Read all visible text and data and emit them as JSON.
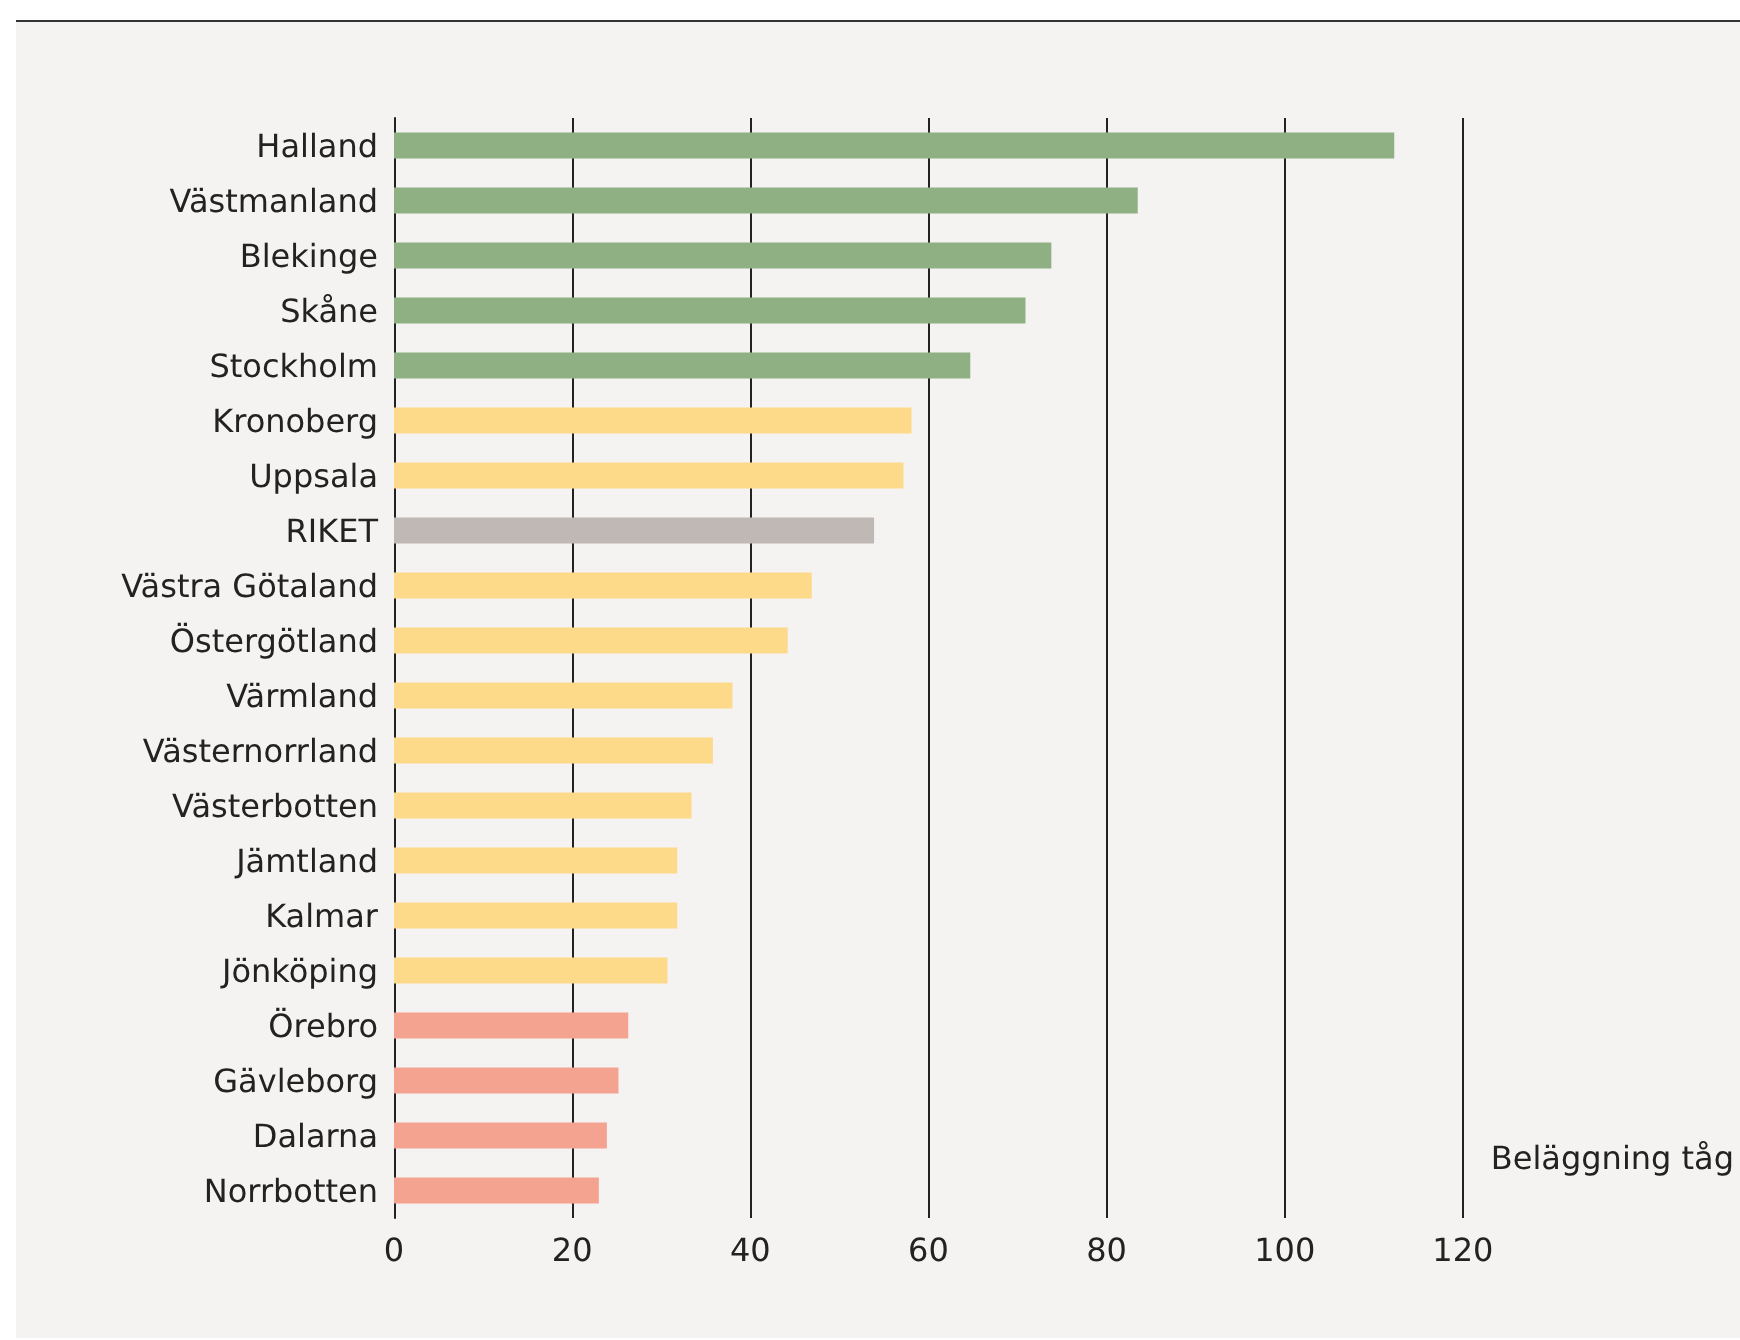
{
  "chart_data": {
    "type": "bar",
    "orientation": "horizontal",
    "xlabel": "Beläggning tåg",
    "categories": [
      "Halland",
      "Västmanland",
      "Blekinge",
      "Skåne",
      "Stockholm",
      "Kronoberg",
      "Uppsala",
      "RIKET",
      "Västra Götaland",
      "Östergötland",
      "Värmland",
      "Västernorrland",
      "Västerbotten",
      "Jämtland",
      "Kalmar",
      "Jönköping",
      "Örebro",
      "Gävleborg",
      "Dalarna",
      "Norrbotten"
    ],
    "values": [
      112.3,
      83.5,
      73.8,
      70.9,
      64.7,
      58.1,
      57.2,
      53.9,
      46.9,
      44.2,
      38.0,
      35.8,
      33.4,
      31.8,
      31.8,
      30.7,
      26.3,
      25.2,
      23.9,
      23.0
    ],
    "colors": [
      "#8fb082",
      "#8fb082",
      "#8fb082",
      "#8fb082",
      "#8fb082",
      "#fdd98a",
      "#fdd98a",
      "#c0b8b4",
      "#fdd98a",
      "#fdd98a",
      "#fdd98a",
      "#fdd98a",
      "#fdd98a",
      "#fdd98a",
      "#fdd98a",
      "#fdd98a",
      "#f4a391",
      "#f4a391",
      "#f4a391",
      "#f4a391"
    ],
    "xlim": [
      0,
      120
    ],
    "xticks": [
      0,
      20,
      40,
      60,
      80,
      100,
      120
    ],
    "grid": "x"
  }
}
